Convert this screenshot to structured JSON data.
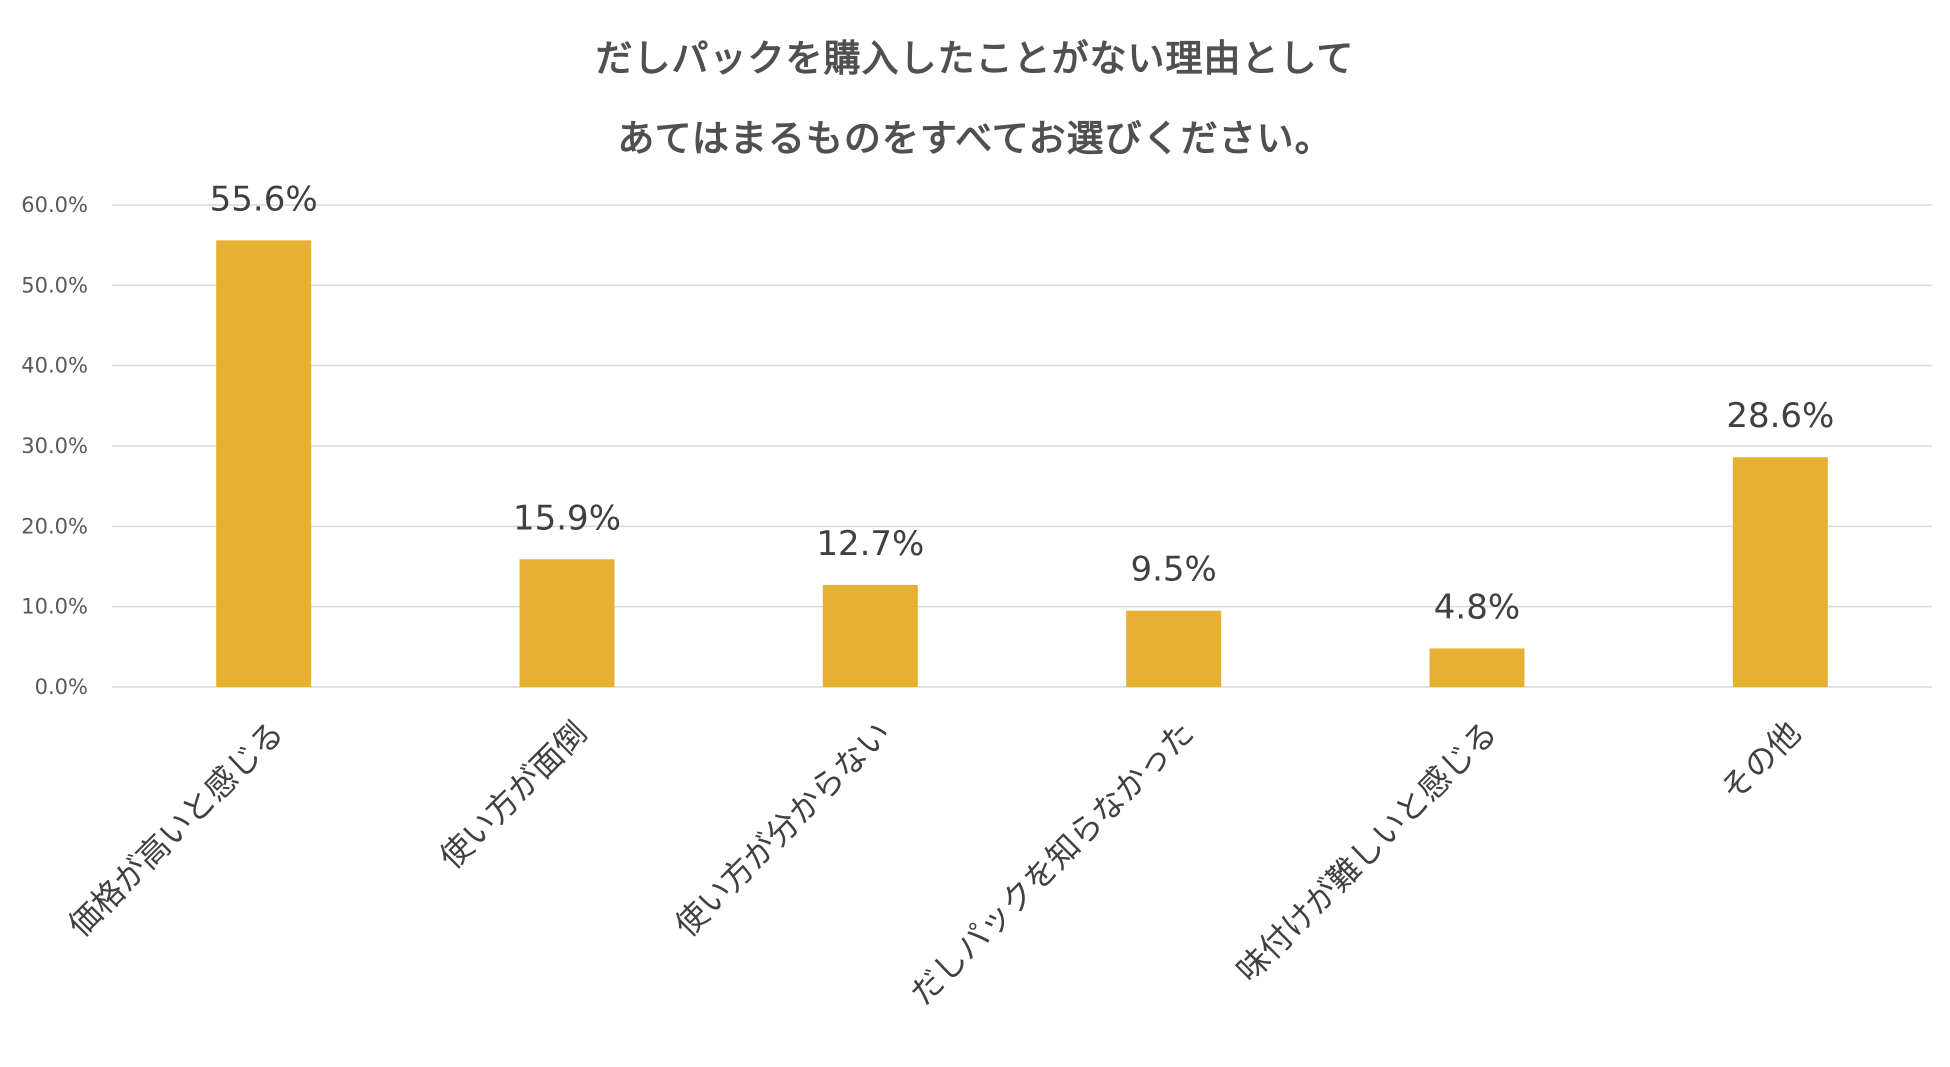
{
  "chart_data": {
    "type": "bar",
    "title_lines": [
      "だしパックを購入したことがない理由として",
      "あてはまるものをすべてお選びください。"
    ],
    "categories": [
      "価格が高いと感じる",
      "使い方が面倒",
      "使い方が分からない",
      "だしパックを知らなかった",
      "味付けが難しいと感じる",
      "その他"
    ],
    "values": [
      55.6,
      15.9,
      12.7,
      9.5,
      4.8,
      28.6
    ],
    "data_labels": [
      "55.6%",
      "15.9%",
      "12.7%",
      "9.5%",
      "4.8%",
      "28.6%"
    ],
    "y_ticks": [
      0,
      10,
      20,
      30,
      40,
      50,
      60
    ],
    "y_tick_labels": [
      "0.0%",
      "10.0%",
      "20.0%",
      "30.0%",
      "40.0%",
      "50.0%",
      "60.0%"
    ],
    "ylim": [
      0,
      60
    ],
    "xlabel": "",
    "ylabel": "",
    "grid": true,
    "legend": "none",
    "colors": {
      "bar": "#E6B133",
      "grid": "#D9D9D9",
      "text": "#404040"
    }
  }
}
